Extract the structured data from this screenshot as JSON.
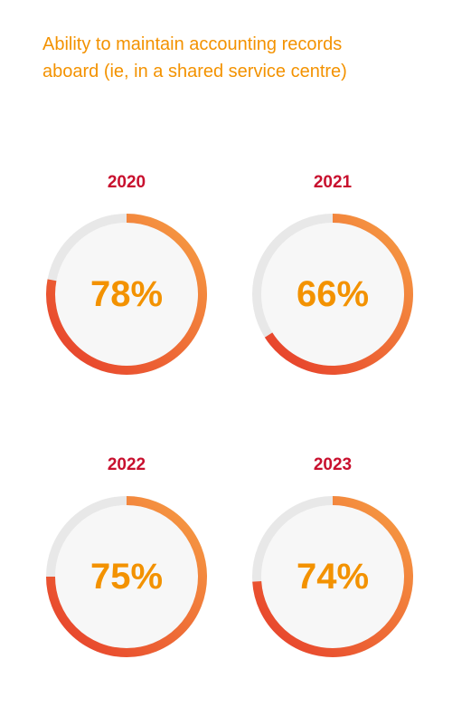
{
  "title": {
    "line1": "Ability to maintain accounting records",
    "line2": "aboard (ie, in a shared service centre)"
  },
  "colors": {
    "title": "#f39200",
    "year": "#c8102e",
    "value": "#f39200",
    "track": "#e8e8e8",
    "inner": "#f7f7f7",
    "arc_start": "#f7a044",
    "arc_end": "#e63c2a"
  },
  "chart_data": {
    "type": "pie",
    "title": "Ability to maintain accounting records aboard (ie, in a shared service centre)",
    "unit": "%",
    "categories": [
      "2020",
      "2021",
      "2022",
      "2023"
    ],
    "values": [
      78,
      66,
      75,
      74
    ],
    "labels": [
      "78%",
      "66%",
      "75%",
      "74%"
    ],
    "max": 100
  }
}
